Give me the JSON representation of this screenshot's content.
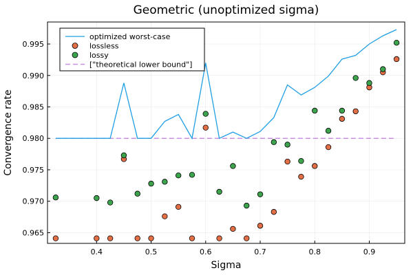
{
  "chart_data": {
    "type": "scatter",
    "title": "Geometric (unoptimized sigma)",
    "xlabel": "Sigma",
    "ylabel": "Convergence rate",
    "xlim": [
      0.31,
      0.965
    ],
    "ylim": [
      0.9633,
      0.9985
    ],
    "grid": true,
    "legend_position": "top-left",
    "x_ticks": [
      {
        "value": 0.4,
        "label": "0.4"
      },
      {
        "value": 0.5,
        "label": "0.5"
      },
      {
        "value": 0.6,
        "label": "0.6"
      },
      {
        "value": 0.7,
        "label": "0.7"
      },
      {
        "value": 0.8,
        "label": "0.8"
      },
      {
        "value": 0.9,
        "label": "0.9"
      }
    ],
    "y_ticks": [
      {
        "value": 0.965,
        "label": "0.965"
      },
      {
        "value": 0.97,
        "label": "0.970"
      },
      {
        "value": 0.975,
        "label": "0.975"
      },
      {
        "value": 0.98,
        "label": "0.980"
      },
      {
        "value": 0.985,
        "label": "0.985"
      },
      {
        "value": 0.99,
        "label": "0.990"
      },
      {
        "value": 0.995,
        "label": "0.995"
      }
    ],
    "series": [
      {
        "name": "optimized worst-case",
        "kind": "line",
        "color": "#1f9fe4",
        "x": [
          0.325,
          0.35,
          0.375,
          0.4,
          0.425,
          0.45,
          0.475,
          0.5,
          0.525,
          0.55,
          0.575,
          0.6,
          0.625,
          0.65,
          0.675,
          0.7,
          0.725,
          0.75,
          0.775,
          0.8,
          0.825,
          0.85,
          0.875,
          0.9,
          0.925,
          0.95
        ],
        "y": [
          0.98,
          0.98,
          0.98,
          0.98,
          0.98,
          0.9888,
          0.98,
          0.98,
          0.9827,
          0.9838,
          0.98,
          0.992,
          0.98,
          0.981,
          0.98,
          0.9811,
          0.9833,
          0.9885,
          0.9869,
          0.9881,
          0.9899,
          0.9926,
          0.9932,
          0.995,
          0.9963,
          0.9973
        ]
      },
      {
        "name": "lossless",
        "kind": "scatter",
        "color": "#e26f46",
        "x": [
          0.325,
          0.4,
          0.425,
          0.45,
          0.475,
          0.5,
          0.525,
          0.55,
          0.575,
          0.6,
          0.625,
          0.65,
          0.675,
          0.7,
          0.725,
          0.75,
          0.775,
          0.8,
          0.825,
          0.85,
          0.875,
          0.9,
          0.925,
          0.95
        ],
        "y": [
          0.9641,
          0.9641,
          0.9641,
          0.9767,
          0.9641,
          0.9641,
          0.9676,
          0.9691,
          0.9641,
          0.9817,
          0.9641,
          0.9656,
          0.9641,
          0.9661,
          0.9683,
          0.9763,
          0.9739,
          0.9756,
          0.9786,
          0.9831,
          0.9843,
          0.9881,
          0.9905,
          0.9926
        ]
      },
      {
        "name": "lossy",
        "kind": "scatter",
        "color": "#3da44d",
        "x": [
          0.325,
          0.4,
          0.425,
          0.45,
          0.475,
          0.5,
          0.525,
          0.55,
          0.575,
          0.6,
          0.625,
          0.65,
          0.675,
          0.7,
          0.725,
          0.75,
          0.775,
          0.8,
          0.825,
          0.85,
          0.875,
          0.9,
          0.925,
          0.95
        ],
        "y": [
          0.9706,
          0.9705,
          0.9698,
          0.9773,
          0.9712,
          0.9728,
          0.9731,
          0.9741,
          0.9742,
          0.9839,
          0.9715,
          0.9756,
          0.9693,
          0.9711,
          0.9794,
          0.979,
          0.9764,
          0.9844,
          0.9812,
          0.9844,
          0.9896,
          0.9888,
          0.991,
          0.9952
        ]
      },
      {
        "name": "[\"theoretical lower bound\"]",
        "kind": "hline",
        "color": "#c88fe0",
        "y": 0.98
      }
    ]
  }
}
